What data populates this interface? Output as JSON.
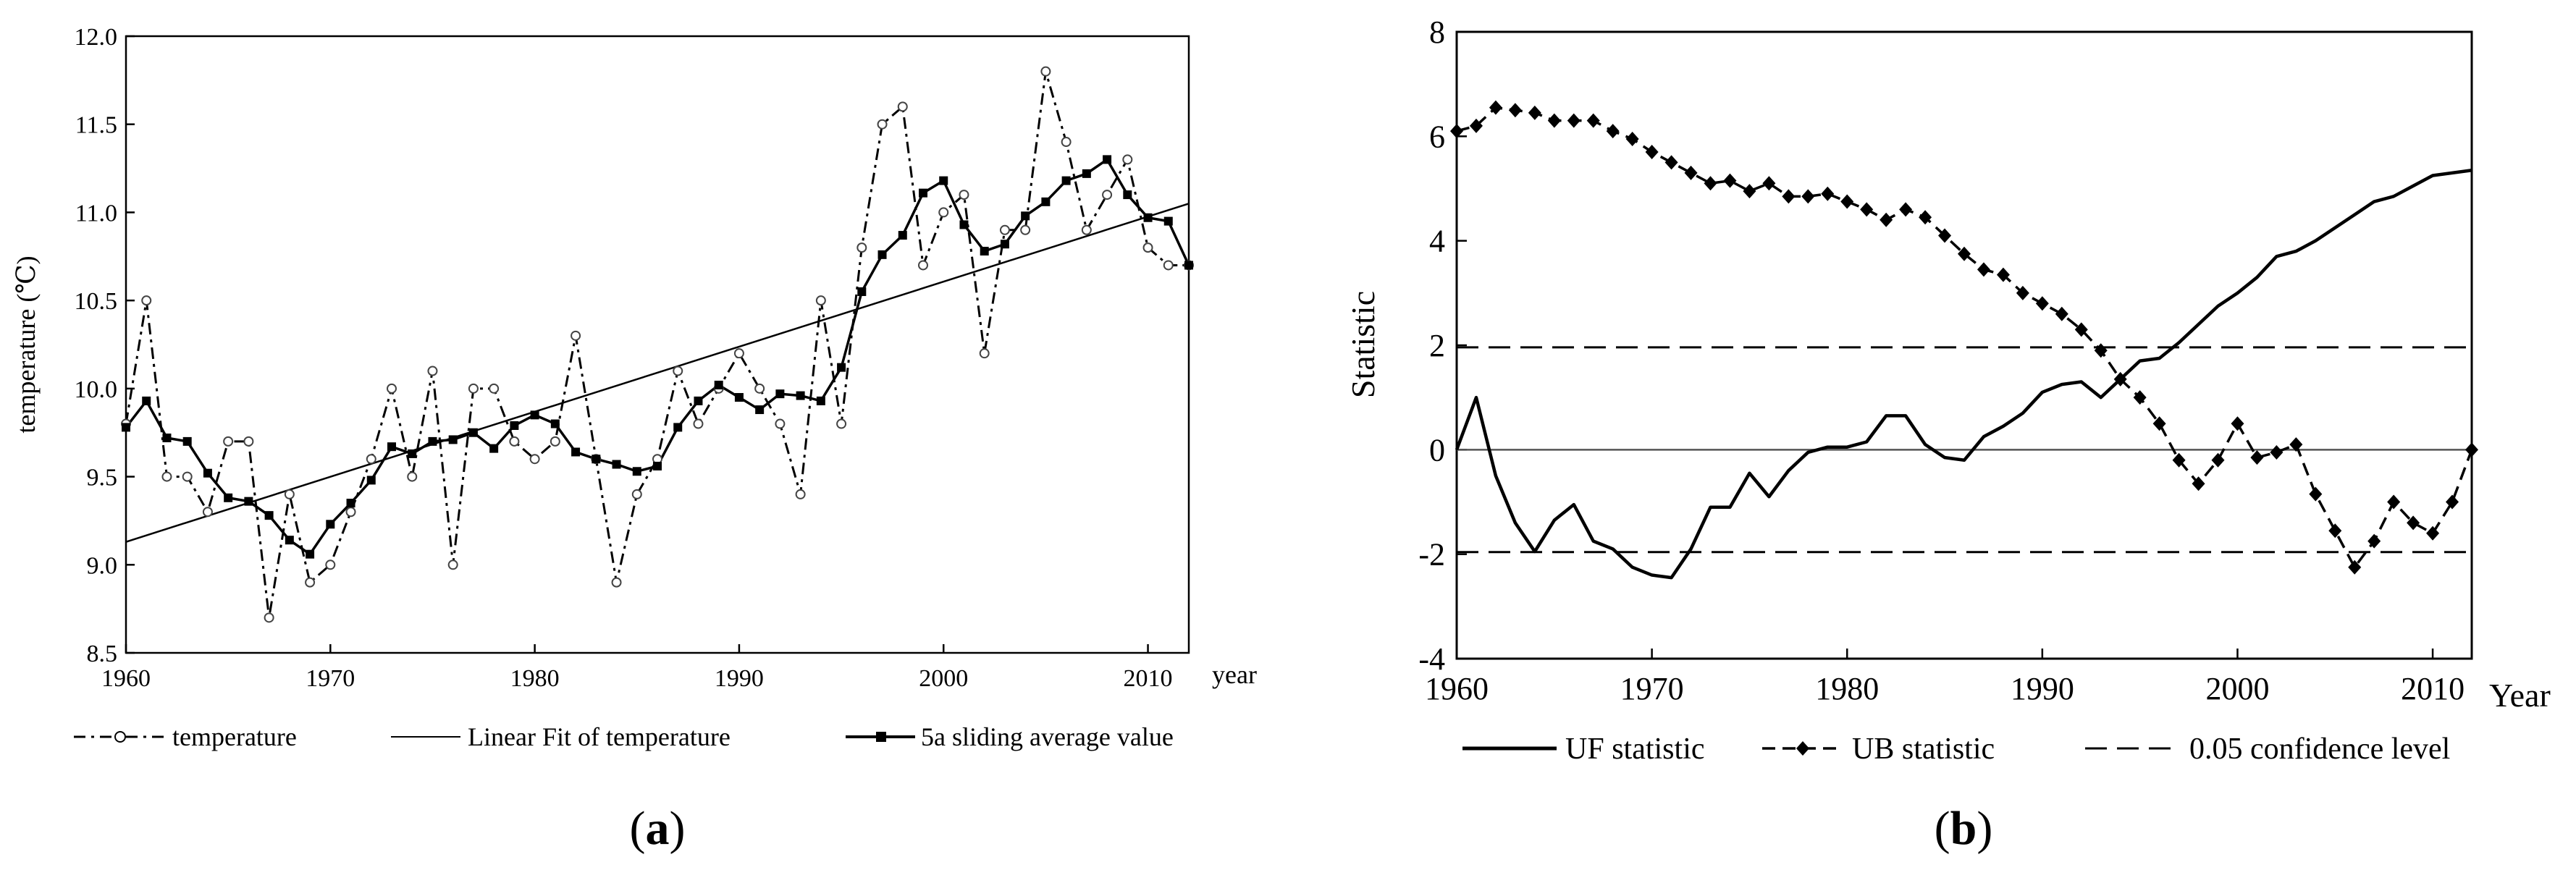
{
  "chart_data": [
    {
      "id": "a",
      "type": "line",
      "panel_label": "a",
      "xlabel": "year",
      "ylabel": "temperature (℃)",
      "xlim": [
        1960,
        2012
      ],
      "ylim": [
        8.5,
        12.0
      ],
      "xticks": [
        1960,
        1970,
        1980,
        1990,
        2000,
        2010
      ],
      "yticks": [
        "8.5",
        "9.0",
        "9.5",
        "10.0",
        "10.5",
        "11.0",
        "11.5",
        "12.0"
      ],
      "series": [
        {
          "name": "temperature",
          "style": "dash-dot with open circles",
          "x": [
            1960,
            1961,
            1962,
            1963,
            1964,
            1965,
            1966,
            1967,
            1968,
            1969,
            1970,
            1971,
            1972,
            1973,
            1974,
            1975,
            1976,
            1977,
            1978,
            1979,
            1980,
            1981,
            1982,
            1983,
            1984,
            1985,
            1986,
            1987,
            1988,
            1989,
            1990,
            1991,
            1992,
            1993,
            1994,
            1995,
            1996,
            1997,
            1998,
            1999,
            2000,
            2001,
            2002,
            2003,
            2004,
            2005,
            2006,
            2007,
            2008,
            2009,
            2010,
            2011,
            2012
          ],
          "values": [
            9.8,
            10.5,
            9.5,
            9.5,
            9.3,
            9.7,
            9.7,
            8.7,
            9.4,
            8.9,
            9.0,
            9.3,
            9.6,
            10.0,
            9.5,
            10.1,
            9.0,
            10.0,
            10.0,
            9.7,
            9.6,
            9.7,
            10.3,
            9.6,
            8.9,
            9.4,
            9.6,
            10.1,
            9.8,
            10.0,
            10.2,
            10.0,
            9.8,
            9.4,
            10.5,
            9.8,
            10.8,
            11.5,
            11.6,
            10.7,
            11.0,
            11.1,
            10.2,
            10.9,
            10.9,
            11.8,
            11.4,
            10.9,
            11.1,
            11.3,
            10.8,
            10.7,
            10.7
          ]
        },
        {
          "name": "Linear Fit of temperature",
          "style": "solid thin line",
          "x": [
            1960,
            2012
          ],
          "values": [
            9.13,
            11.05
          ]
        },
        {
          "name": "5a sliding average value",
          "style": "solid with filled squares",
          "x": [
            1960,
            1961,
            1962,
            1963,
            1964,
            1965,
            1966,
            1967,
            1968,
            1969,
            1970,
            1971,
            1972,
            1973,
            1974,
            1975,
            1976,
            1977,
            1978,
            1979,
            1980,
            1981,
            1982,
            1983,
            1984,
            1985,
            1986,
            1987,
            1988,
            1989,
            1990,
            1991,
            1992,
            1993,
            1994,
            1995,
            1996,
            1997,
            1998,
            1999,
            2000,
            2001,
            2002,
            2003,
            2004,
            2005,
            2006,
            2007,
            2008,
            2009,
            2010,
            2011,
            2012
          ],
          "values": [
            9.78,
            9.93,
            9.72,
            9.7,
            9.52,
            9.38,
            9.36,
            9.28,
            9.14,
            9.06,
            9.23,
            9.35,
            9.48,
            9.67,
            9.63,
            9.7,
            9.71,
            9.75,
            9.66,
            9.79,
            9.85,
            9.8,
            9.64,
            9.6,
            9.57,
            9.53,
            9.56,
            9.78,
            9.93,
            10.02,
            9.95,
            9.88,
            9.97,
            9.96,
            9.93,
            10.12,
            10.55,
            10.76,
            10.87,
            11.11,
            11.18,
            10.93,
            10.78,
            10.82,
            10.98,
            11.06,
            11.18,
            11.22,
            11.3,
            11.1,
            10.97,
            10.95,
            10.7
          ]
        }
      ],
      "legend": [
        "temperature",
        "Linear Fit of temperature",
        "5a sliding average value"
      ],
      "legend_position": "bottom"
    },
    {
      "id": "b",
      "type": "line",
      "panel_label": "b",
      "xlabel": "Year",
      "ylabel": "Statistic",
      "xlim": [
        1960,
        2012
      ],
      "ylim": [
        -4,
        8
      ],
      "xticks": [
        1960,
        1970,
        1980,
        1990,
        2000,
        2010
      ],
      "yticks": [
        "-4",
        "-2",
        "0",
        "2",
        "4",
        "6",
        "8"
      ],
      "series": [
        {
          "name": "UF statistic",
          "style": "solid",
          "x": [
            1960,
            1961,
            1962,
            1963,
            1964,
            1965,
            1966,
            1967,
            1968,
            1969,
            1970,
            1971,
            1972,
            1973,
            1974,
            1975,
            1976,
            1977,
            1978,
            1979,
            1980,
            1981,
            1982,
            1983,
            1984,
            1985,
            1986,
            1987,
            1988,
            1989,
            1990,
            1991,
            1992,
            1993,
            1994,
            1995,
            1996,
            1997,
            1998,
            1999,
            2000,
            2001,
            2002,
            2003,
            2004,
            2005,
            2006,
            2007,
            2008,
            2009,
            2010,
            2011,
            2012
          ],
          "values": [
            0,
            1.0,
            -0.5,
            -1.4,
            -1.95,
            -1.35,
            -1.05,
            -1.75,
            -1.9,
            -2.25,
            -2.4,
            -2.45,
            -1.9,
            -1.1,
            -1.1,
            -0.45,
            -0.9,
            -0.4,
            -0.05,
            0.05,
            0.05,
            0.15,
            0.65,
            0.65,
            0.1,
            -0.15,
            -0.2,
            0.25,
            0.45,
            0.7,
            1.1,
            1.25,
            1.3,
            1.0,
            1.35,
            1.7,
            1.75,
            2.05,
            2.4,
            2.75,
            3.0,
            3.3,
            3.7,
            3.8,
            4.0,
            4.25,
            4.5,
            4.75,
            4.85,
            5.05,
            5.25,
            5.3,
            5.35
          ]
        },
        {
          "name": "UB statistic",
          "style": "dashed with filled diamonds",
          "x": [
            1960,
            1961,
            1962,
            1963,
            1964,
            1965,
            1966,
            1967,
            1968,
            1969,
            1970,
            1971,
            1972,
            1973,
            1974,
            1975,
            1976,
            1977,
            1978,
            1979,
            1980,
            1981,
            1982,
            1983,
            1984,
            1985,
            1986,
            1987,
            1988,
            1989,
            1990,
            1991,
            1992,
            1993,
            1994,
            1995,
            1996,
            1997,
            1998,
            1999,
            2000,
            2001,
            2002,
            2003,
            2004,
            2005,
            2006,
            2007,
            2008,
            2009,
            2010,
            2011,
            2012
          ],
          "values": [
            6.1,
            6.2,
            6.55,
            6.5,
            6.45,
            6.3,
            6.3,
            6.3,
            6.1,
            5.95,
            5.7,
            5.5,
            5.3,
            5.1,
            5.15,
            4.95,
            5.1,
            4.85,
            4.85,
            4.9,
            4.75,
            4.6,
            4.4,
            4.6,
            4.45,
            4.1,
            3.75,
            3.45,
            3.35,
            3.0,
            2.8,
            2.6,
            2.3,
            1.9,
            1.35,
            1.0,
            0.5,
            -0.2,
            -0.65,
            -0.2,
            0.5,
            -0.15,
            -0.05,
            0.1,
            -0.85,
            -1.55,
            -2.25,
            -1.75,
            -1.0,
            -1.4,
            -1.6,
            -1.0,
            0.0
          ]
        },
        {
          "name": "0.05 confidence level",
          "style": "long dashed",
          "levels": [
            1.96,
            -1.96
          ]
        }
      ],
      "reference_line": 0,
      "legend": [
        "UF statistic",
        "UB statistic",
        "0.05 confidence level"
      ],
      "legend_position": "bottom"
    }
  ]
}
